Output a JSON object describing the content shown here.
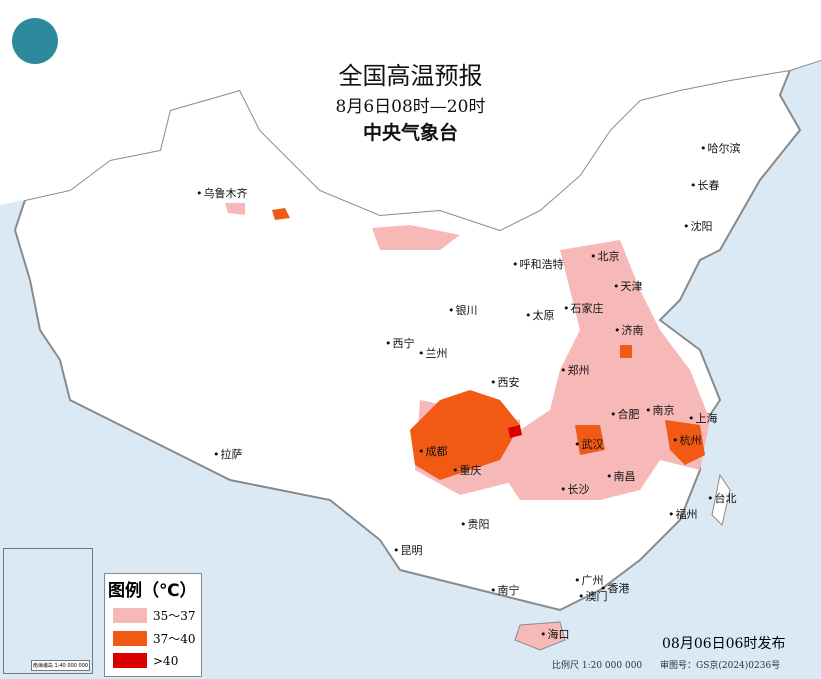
{
  "title": "全国高温预报",
  "period": "8月6日08时—20时",
  "issuer": "中央气象台",
  "legend": {
    "title": "图例（℃）",
    "items": [
      {
        "label": "35～37",
        "color": "#f7b8b8"
      },
      {
        "label": "37～40",
        "color": "#f05a14"
      },
      {
        "label": ">40",
        "color": "#d90000"
      }
    ]
  },
  "inset_label": "南海诸岛 1:40 000 000",
  "publish_time": "08月06日06时发布",
  "scale": "比例尺 1:20 000 000",
  "review_no": "审图号：GS京(2024)0236号",
  "cities": [
    "乌鲁木齐",
    "哈尔滨",
    "长春",
    "沈阳",
    "北京",
    "天津",
    "呼和浩特",
    "石家庄",
    "太原",
    "济南",
    "银川",
    "西宁",
    "兰州",
    "西安",
    "郑州",
    "合肥",
    "南京",
    "上海",
    "杭州",
    "武汉",
    "成都",
    "重庆",
    "长沙",
    "南昌",
    "福州",
    "台北",
    "贵阳",
    "昆明",
    "拉萨",
    "南宁",
    "广州",
    "澳门",
    "香港",
    "海口"
  ],
  "colors": {
    "sea": "#dbe9f5",
    "land": "#ffffff",
    "border": "#8a8a8a"
  }
}
